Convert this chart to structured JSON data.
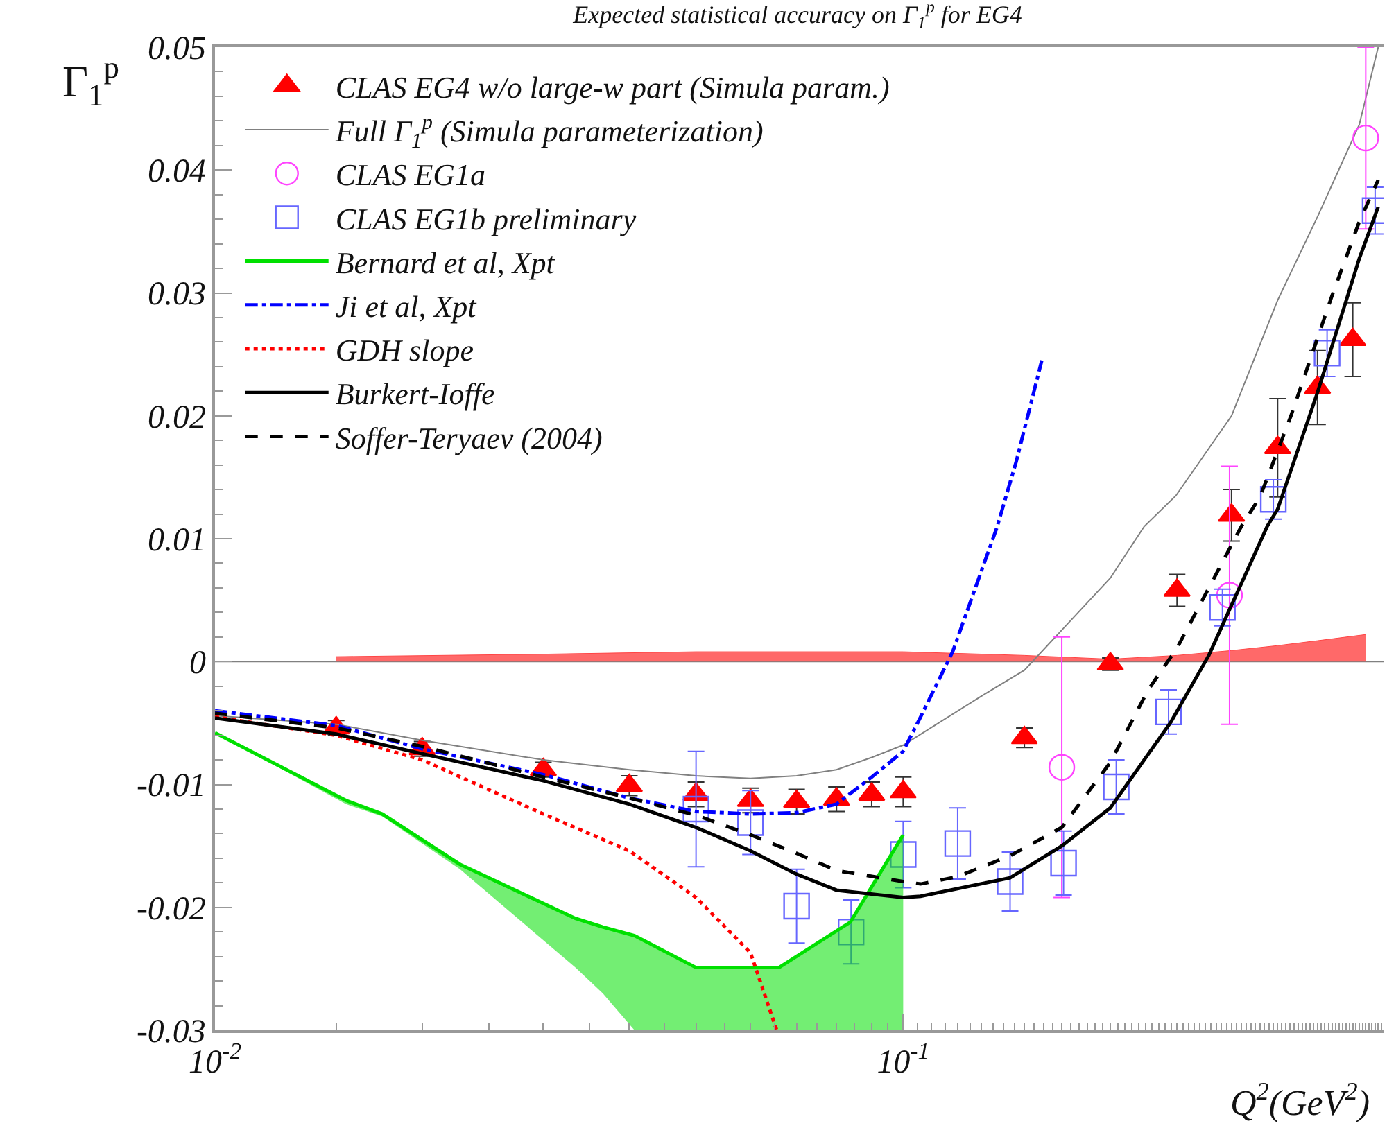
{
  "chart_data": {
    "type": "line",
    "title": "Expected statistical accuracy on Γ$_{1}$$^{p}$ for EG4",
    "xlabel": "Q$^{2}$(GeV$^{2}$)",
    "ylabel": "Γ$_{1}$$^{p}$",
    "log": "x",
    "xlim": [
      0.01,
      0.5
    ],
    "ylim": [
      -0.03,
      0.05
    ],
    "xticks": [
      {
        "value": 0.01,
        "label": "10$^{-2}$"
      },
      {
        "value": 0.1,
        "label": "10$^{-1}$"
      }
    ],
    "yticks": [
      -0.03,
      -0.02,
      -0.01,
      0,
      0.01,
      0.02,
      0.03,
      0.04,
      0.05
    ],
    "grid": false,
    "legend": "top left",
    "ref_lines": [
      {
        "axis": "y",
        "value": 0,
        "color": "#808080"
      }
    ],
    "series": [
      {
        "name": "CLAS EG4 w/o large-w part (Simula param.)",
        "type": "scatter",
        "marker": "triangle",
        "color": "#ff0000",
        "x": [
          0.015,
          0.02,
          0.03,
          0.04,
          0.05,
          0.06,
          0.07,
          0.08,
          0.09,
          0.1,
          0.15,
          0.2,
          0.25,
          0.3,
          0.35,
          0.4,
          0.45
        ],
        "values": [
          -0.0054,
          -0.0071,
          -0.0088,
          -0.0101,
          -0.0108,
          -0.0113,
          -0.0114,
          -0.0112,
          -0.0108,
          -0.0106,
          -0.0062,
          -0.0002,
          0.0058,
          0.0119,
          0.0174,
          0.0223,
          0.0262
        ],
        "errors": [
          0.0006,
          0.0006,
          0.0006,
          0.0008,
          0.001,
          0.001,
          0.001,
          0.001,
          0.001,
          0.0012,
          0.0008,
          0.0005,
          0.0013,
          0.0021,
          0.004,
          0.003,
          0.003
        ]
      },
      {
        "name": "Full Γ$_{1}$$^{p}$ (Simula parameterization)",
        "marker": "none",
        "line_style": "solid",
        "color": "#808080",
        "x": [
          0.01,
          0.015,
          0.02,
          0.03,
          0.04,
          0.05,
          0.06,
          0.07,
          0.08,
          0.09,
          0.1,
          0.13,
          0.15,
          0.2,
          0.224,
          0.249,
          0.3,
          0.35,
          0.4,
          0.46,
          0.49
        ],
        "values": [
          -0.0044,
          -0.0051,
          -0.0064,
          -0.008,
          -0.0088,
          -0.0093,
          -0.0095,
          -0.0093,
          -0.0088,
          -0.0078,
          -0.0068,
          -0.0028,
          -0.0007,
          0.0068,
          0.011,
          0.0135,
          0.02,
          0.0294,
          0.0362,
          0.0437,
          0.05
        ]
      },
      {
        "name": "CLAS EG1a",
        "type": "scatter",
        "marker": "circle-open",
        "color": "#ff44ff",
        "x": [
          0.17,
          0.298,
          0.47
        ],
        "values": [
          -0.0086,
          0.0054,
          0.0426
        ],
        "errors": [
          0.0106,
          0.0105,
          0.0074
        ]
      },
      {
        "name": "CLAS EG1b preliminary",
        "type": "scatter",
        "marker": "square-open",
        "color": "#6666ff",
        "x": [
          0.05,
          0.06,
          0.07,
          0.084,
          0.1,
          0.12,
          0.143,
          0.171,
          0.204,
          0.243,
          0.291,
          0.345,
          0.413,
          0.485
        ],
        "values": [
          -0.012,
          -0.0131,
          -0.0199,
          -0.022,
          -0.0157,
          -0.0148,
          -0.0179,
          -0.0164,
          -0.0102,
          -0.0041,
          0.0044,
          0.0132,
          0.0251,
          0.0367
        ],
        "errors": [
          0.0047,
          0.0026,
          0.003,
          0.0026,
          0.0027,
          0.0029,
          0.0024,
          0.0026,
          0.0022,
          0.0018,
          0.0015,
          0.0016,
          0.0019,
          0.0019
        ]
      },
      {
        "name": "Bernard et al, Xpt",
        "marker": "none",
        "line_style": "solid",
        "color": "#00e000",
        "x": [
          0.01,
          0.0155,
          0.0175,
          0.0227,
          0.0334,
          0.0366,
          0.0407,
          0.05,
          0.066,
          0.0838,
          0.1
        ],
        "values": [
          -0.0058,
          -0.0113,
          -0.0124,
          -0.0165,
          -0.0209,
          -0.0216,
          -0.0223,
          -0.0249,
          -0.0249,
          -0.0212,
          -0.0141
        ],
        "lower": [
          -0.0058,
          -0.0116,
          -0.0126,
          -0.0169,
          -0.0249,
          -0.027,
          -0.03,
          -0.03,
          -0.03,
          -0.03,
          -0.03
        ],
        "upper": [
          -0.0058,
          -0.0113,
          -0.0124,
          -0.0165,
          -0.0209,
          -0.0216,
          -0.0223,
          -0.0249,
          -0.0249,
          -0.0212,
          -0.0141
        ]
      },
      {
        "name": "Ji et al, Xpt",
        "marker": "none",
        "line_style": "dashdot",
        "color": "#0000ff",
        "x": [
          0.01,
          0.015,
          0.02,
          0.03,
          0.04,
          0.05,
          0.06,
          0.07,
          0.08,
          0.09,
          0.1,
          0.106,
          0.118,
          0.137,
          0.146,
          0.159
        ],
        "values": [
          -0.004,
          -0.0052,
          -0.0071,
          -0.0092,
          -0.0111,
          -0.0122,
          -0.0124,
          -0.0123,
          -0.0116,
          -0.0094,
          -0.0073,
          -0.0045,
          0.0008,
          0.011,
          0.0163,
          0.0245
        ]
      },
      {
        "name": "GDH slope",
        "marker": "none",
        "line_style": "dotted",
        "color": "#ff0000",
        "x": [
          0.01,
          0.015,
          0.02,
          0.03,
          0.04,
          0.05,
          0.06,
          0.0655
        ],
        "values": [
          -0.0045,
          -0.006,
          -0.008,
          -0.0124,
          -0.0154,
          -0.0192,
          -0.0237,
          -0.03
        ]
      },
      {
        "name": "Burkert-Ioffe",
        "marker": "none",
        "line_style": "solid",
        "color": "#000000",
        "x": [
          0.01,
          0.015,
          0.02,
          0.03,
          0.04,
          0.05,
          0.06,
          0.07,
          0.08,
          0.1,
          0.106,
          0.143,
          0.17,
          0.2,
          0.245,
          0.278,
          0.338,
          0.35,
          0.4,
          0.46,
          0.49
        ],
        "values": [
          -0.0046,
          -0.0059,
          -0.0075,
          -0.0097,
          -0.0116,
          -0.0135,
          -0.0154,
          -0.0173,
          -0.0186,
          -0.0192,
          -0.0191,
          -0.0176,
          -0.015,
          -0.0119,
          -0.0049,
          0.0005,
          0.011,
          0.0124,
          0.0219,
          0.0328,
          0.037
        ]
      },
      {
        "name": "Soffer-Teryaev (2004)",
        "marker": "none",
        "line_style": "dashed",
        "color": "#000000",
        "x": [
          0.01,
          0.015,
          0.02,
          0.03,
          0.04,
          0.05,
          0.06,
          0.07,
          0.08,
          0.1,
          0.106,
          0.12,
          0.143,
          0.17,
          0.2,
          0.227,
          0.25,
          0.31,
          0.33,
          0.366,
          0.42,
          0.46,
          0.49
        ],
        "values": [
          -0.0042,
          -0.0054,
          -0.0069,
          -0.0094,
          -0.0111,
          -0.0125,
          -0.0141,
          -0.0156,
          -0.017,
          -0.0179,
          -0.0181,
          -0.0175,
          -0.0158,
          -0.0135,
          -0.0082,
          -0.0023,
          0.0011,
          0.011,
          0.0134,
          0.02,
          0.0298,
          0.0358,
          0.0392
        ]
      },
      {
        "type": "area",
        "color": "#ff4444",
        "x": [
          0.015,
          0.03,
          0.05,
          0.1,
          0.15,
          0.2,
          0.25,
          0.3,
          0.35,
          0.4,
          0.47
        ],
        "values": [
          0.0004,
          0.0006,
          0.0008,
          0.0008,
          0.0005,
          0.0002,
          0.0005,
          0.0009,
          0.0013,
          0.0017,
          0.0022
        ]
      }
    ]
  }
}
